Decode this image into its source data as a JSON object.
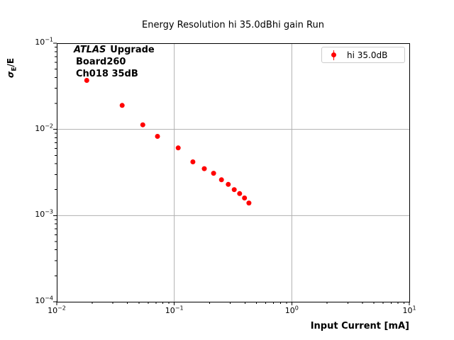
{
  "chart_data": {
    "type": "scatter",
    "title": "Energy Resolution hi 35.0dBhi gain Run",
    "xlabel": "Input Current [mA]",
    "ylabel": "σ_E/E",
    "ylabel_parts": {
      "sigma": "σ",
      "sub": "E",
      "rest": "/E"
    },
    "x_scale": "log",
    "y_scale": "log",
    "xlim": [
      0.01,
      10
    ],
    "ylim": [
      0.0001,
      0.1
    ],
    "grid": true,
    "grid_color": "#b0b0b0",
    "frame_color": "#000000",
    "legend": {
      "label": "hi 35.0dB",
      "position": "upper-right",
      "marker": "errorbar-dot"
    },
    "annotation": {
      "line1_italic": "ATLAS",
      "line1_bold": "Upgrade",
      "line2": "Board260",
      "line3": "Ch018 35dB"
    },
    "x_ticks": [
      {
        "value": 0.01,
        "base": "10",
        "exp": "−2"
      },
      {
        "value": 0.1,
        "base": "10",
        "exp": "−1"
      },
      {
        "value": 1,
        "base": "10",
        "exp": "0"
      },
      {
        "value": 10,
        "base": "10",
        "exp": "1"
      }
    ],
    "y_ticks": [
      {
        "value": 0.1,
        "base": "10",
        "exp": "−1"
      },
      {
        "value": 0.01,
        "base": "10",
        "exp": "−2"
      },
      {
        "value": 0.001,
        "base": "10",
        "exp": "−3"
      },
      {
        "value": 0.0001,
        "base": "10",
        "exp": "−4"
      }
    ],
    "series": [
      {
        "name": "hi 35.0dB",
        "color": "#ff0000",
        "marker": "circle",
        "marker_size_px": 7,
        "x": [
          0.018,
          0.036,
          0.054,
          0.072,
          0.108,
          0.144,
          0.18,
          0.216,
          0.252,
          0.288,
          0.324,
          0.36,
          0.396,
          0.432
        ],
        "y": [
          0.037,
          0.019,
          0.0113,
          0.0083,
          0.0061,
          0.0042,
          0.0035,
          0.0031,
          0.0026,
          0.0023,
          0.002,
          0.0018,
          0.0016,
          0.0014
        ]
      }
    ]
  }
}
